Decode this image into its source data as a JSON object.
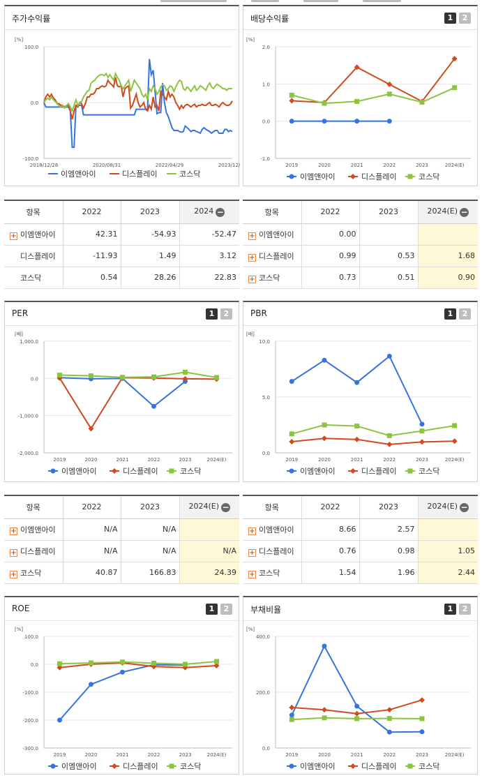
{
  "colors": {
    "blue": "#3573e0",
    "red": "#d04a1e",
    "green": "#8bc53f"
  },
  "legend": [
    "이엠앤아이",
    "디스플레이",
    "코스닥"
  ],
  "chart_data": [
    {
      "id": "stock",
      "type": "line",
      "title": "주가수익률",
      "ylabel": "[%]",
      "ylim": [
        -100,
        100
      ],
      "yticks": [
        "100.0",
        "0.0",
        "-100.0"
      ],
      "xticks": [
        "2018/12/28",
        "2020/08/31",
        "2022/04/29",
        "2023/12/28"
      ],
      "x": [
        0,
        1,
        2,
        3,
        4,
        5,
        6,
        7,
        8,
        9,
        10,
        11,
        12,
        13,
        14,
        15,
        16,
        17,
        18,
        19,
        20,
        21,
        22,
        23,
        24,
        25,
        26,
        27,
        28,
        29,
        30,
        31,
        32,
        33,
        34,
        35,
        36,
        37,
        38,
        39,
        40,
        41,
        42,
        43,
        44,
        45,
        46,
        47,
        48,
        49,
        50,
        51,
        52,
        53,
        54,
        55,
        56,
        57,
        58,
        59,
        60,
        61,
        62,
        63,
        64,
        65,
        66,
        67,
        68,
        69,
        70,
        71,
        72,
        73,
        74,
        75,
        76,
        77,
        78,
        79,
        80,
        81,
        82,
        83,
        84,
        85,
        86,
        87,
        88,
        89,
        90,
        91,
        92,
        93,
        94,
        95,
        96,
        97,
        98,
        99,
        100
      ],
      "series": [
        {
          "name": "이엠앤아이",
          "values": [
            0,
            -8,
            -8,
            -8,
            -8,
            -8,
            -8,
            -8,
            -8,
            -8,
            -8,
            -8,
            -8,
            -8,
            -15,
            -80,
            -80,
            -5,
            -5,
            -5,
            -5,
            -22,
            -22,
            -22,
            -22,
            -22,
            -22,
            -22,
            -22,
            -22,
            -22,
            -22,
            -22,
            -22,
            -22,
            -22,
            -22,
            -22,
            -22,
            -22,
            -22,
            -22,
            -22,
            -22,
            -22,
            -22,
            -22,
            -22,
            -22,
            -12,
            -12,
            -12,
            -12,
            -12,
            -12,
            -12,
            78,
            50,
            58,
            20,
            -20,
            -18,
            -18,
            35,
            0,
            -18,
            -25,
            -35,
            -45,
            -50,
            -50,
            -50,
            -52,
            -53,
            -52,
            -42,
            -45,
            -48,
            -52,
            -50,
            -50,
            -52,
            -53,
            -55,
            -48,
            -45,
            -48,
            -50,
            -52,
            -55,
            -52,
            -50,
            -50,
            -55,
            -55,
            -55,
            -48,
            -48,
            -52,
            -50,
            -52
          ]
        },
        {
          "name": "디스플레이",
          "values": [
            0,
            10,
            15,
            10,
            15,
            8,
            5,
            -2,
            -2,
            -5,
            -5,
            -8,
            -5,
            -5,
            -15,
            -30,
            -15,
            -5,
            -8,
            0,
            -2,
            -10,
            -2,
            10,
            10,
            15,
            15,
            18,
            25,
            25,
            28,
            30,
            28,
            30,
            40,
            35,
            32,
            28,
            45,
            30,
            28,
            30,
            10,
            25,
            28,
            30,
            -10,
            -5,
            5,
            15,
            0,
            -8,
            -5,
            0,
            -12,
            -15,
            -5,
            -12,
            10,
            -8,
            -5,
            -15,
            20,
            15,
            10,
            5,
            20,
            10,
            15,
            10,
            0,
            -5,
            -12,
            -5,
            -10,
            -5,
            -3,
            -5,
            -8,
            -5,
            -3,
            -8,
            -5,
            -5,
            -3,
            -5,
            -5,
            -2,
            0,
            -5,
            -5,
            -3,
            -5,
            -8,
            -3,
            0,
            -3,
            -5,
            -5,
            -3,
            3
          ]
        },
        {
          "name": "코스닥",
          "values": [
            0,
            5,
            8,
            5,
            10,
            5,
            2,
            -2,
            -5,
            -8,
            -5,
            -10,
            -5,
            -2,
            -8,
            -15,
            -5,
            5,
            -5,
            0,
            2,
            10,
            15,
            20,
            22,
            35,
            38,
            40,
            45,
            48,
            50,
            50,
            48,
            52,
            45,
            50,
            45,
            40,
            52,
            45,
            40,
            30,
            25,
            30,
            35,
            40,
            20,
            30,
            40,
            35,
            30,
            25,
            15,
            10,
            15,
            5,
            25,
            20,
            30,
            25,
            15,
            20,
            28,
            32,
            30,
            22,
            25,
            30,
            28,
            20,
            28,
            35,
            40,
            38,
            25,
            22,
            28,
            25,
            20,
            25,
            30,
            22,
            25,
            30,
            28,
            25,
            22,
            30,
            35,
            28,
            25,
            30,
            33,
            30,
            28,
            25,
            25,
            22,
            25,
            25,
            25
          ]
        }
      ]
    },
    {
      "id": "dividend",
      "type": "line",
      "title": "배당수익률",
      "ylabel": "[%]",
      "ylim": [
        -1,
        2
      ],
      "yticks": [
        "2.0",
        "1.0",
        "0.0",
        "-1.0"
      ],
      "categories": [
        "2019",
        "2020",
        "2021",
        "2022",
        "2023",
        "2024(E)"
      ],
      "series": [
        {
          "name": "이엠앤아이",
          "values": [
            0,
            0,
            0,
            0,
            null,
            null
          ]
        },
        {
          "name": "디스플레이",
          "values": [
            0.55,
            0.5,
            1.45,
            0.99,
            0.53,
            1.68
          ]
        },
        {
          "name": "코스닥",
          "values": [
            0.7,
            0.48,
            0.53,
            0.73,
            0.51,
            0.9
          ]
        }
      ]
    },
    {
      "id": "per",
      "type": "line",
      "title": "PER",
      "ylabel": "[배]",
      "ylim": [
        -2000,
        1000
      ],
      "yticks": [
        "1,000.0",
        "0.0",
        "-1,000.0",
        "-2,000.0"
      ],
      "categories": [
        "2019",
        "2020",
        "2021",
        "2022",
        "2023",
        "2024(E)"
      ],
      "series": [
        {
          "name": "이엠앤아이",
          "values": [
            20,
            -10,
            0,
            -750,
            -80,
            null
          ]
        },
        {
          "name": "디스플레이",
          "values": [
            10,
            -1350,
            20,
            10,
            -10,
            -20
          ]
        },
        {
          "name": "코스닥",
          "values": [
            90,
            70,
            30,
            40.87,
            166.83,
            24.39
          ]
        }
      ]
    },
    {
      "id": "pbr",
      "type": "line",
      "title": "PBR",
      "ylabel": "[배]",
      "ylim": [
        0,
        10
      ],
      "yticks": [
        "10.0",
        "5.0",
        "0.0"
      ],
      "categories": [
        "2019",
        "2020",
        "2021",
        "2022",
        "2023",
        "2024(E)"
      ],
      "series": [
        {
          "name": "이엠앤아이",
          "values": [
            6.4,
            8.3,
            6.3,
            8.66,
            2.57,
            null
          ]
        },
        {
          "name": "디스플레이",
          "values": [
            1.0,
            1.3,
            1.2,
            0.76,
            0.98,
            1.05
          ]
        },
        {
          "name": "코스닥",
          "values": [
            1.7,
            2.5,
            2.4,
            1.54,
            1.96,
            2.44
          ]
        }
      ]
    },
    {
      "id": "roe",
      "type": "line",
      "title": "ROE",
      "ylabel": "[%]",
      "ylim": [
        -300,
        100
      ],
      "yticks": [
        "100.0",
        "0.0",
        "-100.0",
        "-200.0",
        "-300.0"
      ],
      "categories": [
        "2019",
        "2020",
        "2021",
        "2022",
        "2023",
        "2024(E)"
      ],
      "series": [
        {
          "name": "이엠앤아이",
          "values": [
            -200,
            -72,
            -28,
            -2,
            -3,
            null
          ]
        },
        {
          "name": "디스플레이",
          "values": [
            -12,
            0,
            5,
            -8,
            -12,
            -5
          ]
        },
        {
          "name": "코스닥",
          "values": [
            2,
            5,
            8,
            4,
            0,
            10
          ]
        }
      ]
    },
    {
      "id": "debt",
      "type": "line",
      "title": "부채비율",
      "ylabel": "[%]",
      "ylim": [
        0,
        400
      ],
      "yticks": [
        "400.0",
        "200.0",
        "0.0"
      ],
      "categories": [
        "2019",
        "2020",
        "2021",
        "2022",
        "2023",
        "2024(E)"
      ],
      "series": [
        {
          "name": "이엠앤아이",
          "values": [
            118,
            365,
            150,
            57,
            58,
            null
          ]
        },
        {
          "name": "디스플레이",
          "values": [
            145,
            137,
            123,
            137,
            172,
            null
          ]
        },
        {
          "name": "코스닥",
          "values": [
            102,
            108,
            105,
            106,
            105,
            null
          ]
        }
      ]
    }
  ],
  "tables": {
    "t1": {
      "header": [
        "항목",
        "2022",
        "2023",
        "2024"
      ],
      "rows": [
        {
          "label": "이엠앤아이",
          "plus": true,
          "values": [
            "42.31",
            "-54.93",
            "-52.47"
          ]
        },
        {
          "label": "디스플레이",
          "plus": false,
          "values": [
            "-11.93",
            "1.49",
            "3.12"
          ]
        },
        {
          "label": "코스닥",
          "plus": false,
          "values": [
            "0.54",
            "28.26",
            "22.83"
          ]
        }
      ]
    },
    "t2": {
      "header": [
        "항목",
        "2022",
        "2023",
        "2024(E)"
      ],
      "rows": [
        {
          "label": "이엠앤아이",
          "plus": true,
          "values": [
            "0.00",
            "",
            ""
          ]
        },
        {
          "label": "디스플레이",
          "plus": true,
          "values": [
            "0.99",
            "0.53",
            "1.68"
          ]
        },
        {
          "label": "코스닥",
          "plus": true,
          "values": [
            "0.73",
            "0.51",
            "0.90"
          ]
        }
      ]
    },
    "t3": {
      "header": [
        "항목",
        "2022",
        "2023",
        "2024(E)"
      ],
      "rows": [
        {
          "label": "이엠앤아이",
          "plus": true,
          "values": [
            "N/A",
            "N/A",
            ""
          ]
        },
        {
          "label": "디스플레이",
          "plus": true,
          "values": [
            "N/A",
            "N/A",
            "N/A"
          ]
        },
        {
          "label": "코스닥",
          "plus": true,
          "values": [
            "40.87",
            "166.83",
            "24.39"
          ]
        }
      ]
    },
    "t4": {
      "header": [
        "항목",
        "2022",
        "2023",
        "2024(E)"
      ],
      "rows": [
        {
          "label": "이엠앤아이",
          "plus": true,
          "values": [
            "8.66",
            "2.57",
            ""
          ]
        },
        {
          "label": "디스플레이",
          "plus": true,
          "values": [
            "0.76",
            "0.98",
            "1.05"
          ]
        },
        {
          "label": "코스닥",
          "plus": true,
          "values": [
            "1.54",
            "1.96",
            "2.44"
          ]
        }
      ]
    }
  },
  "pager": [
    "1",
    "2"
  ]
}
